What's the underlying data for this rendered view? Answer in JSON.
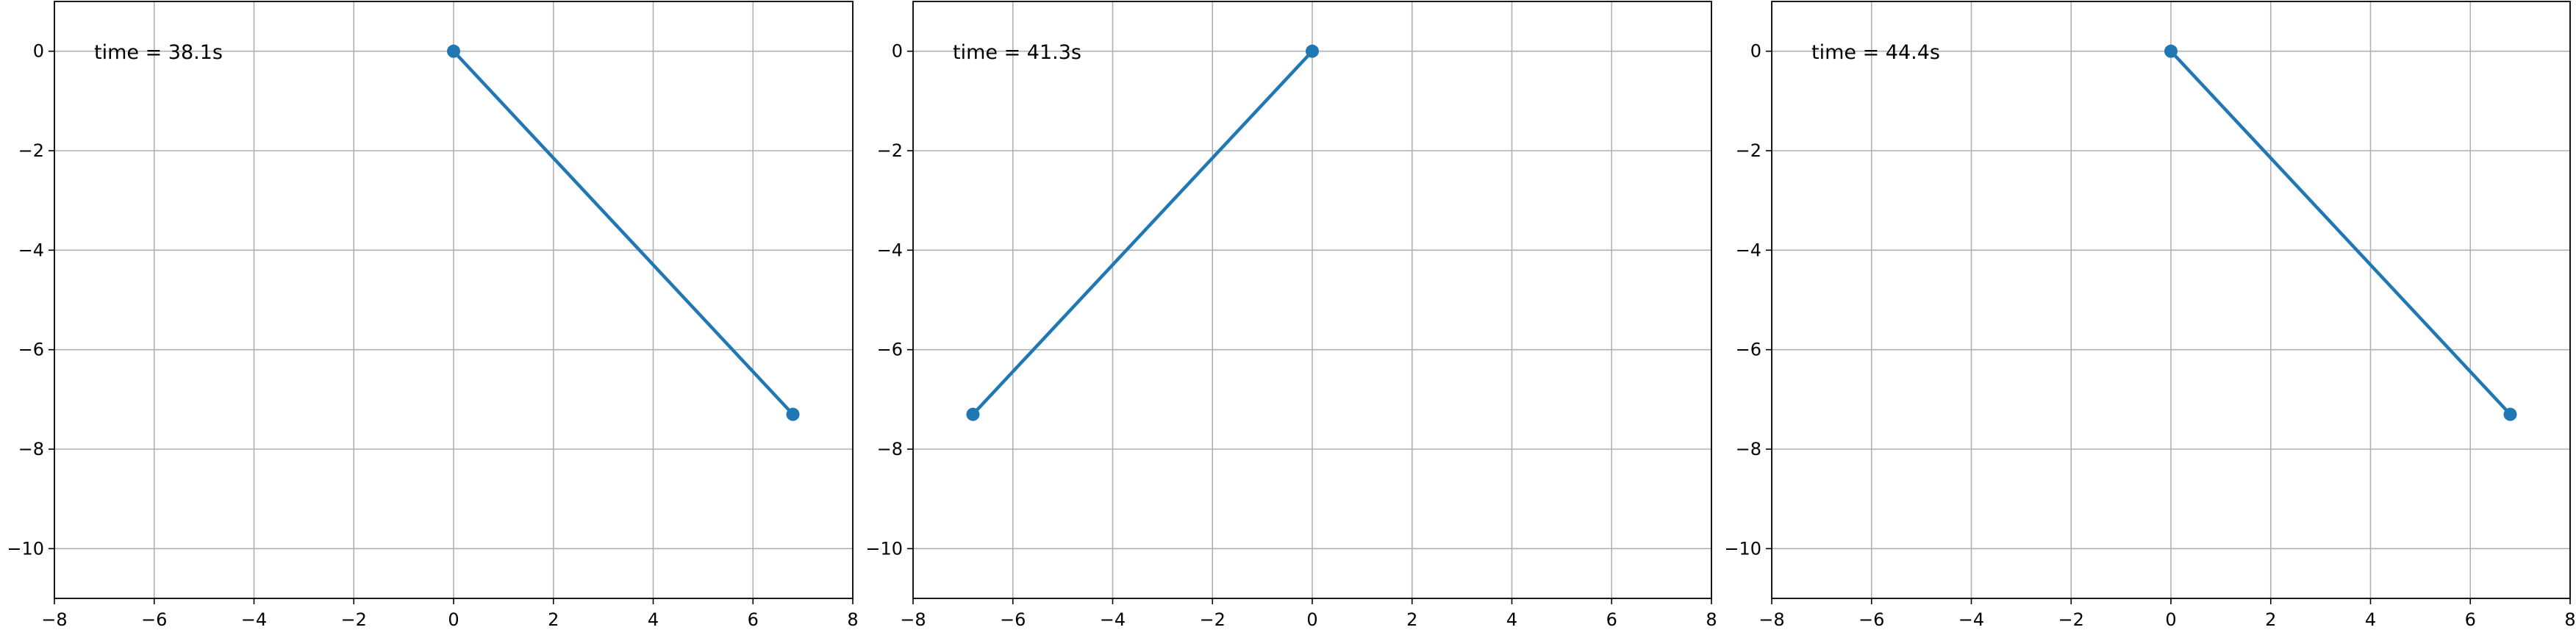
{
  "chart_data": [
    {
      "type": "line",
      "annotation": "time = 38.1s",
      "x": [
        0,
        6.8
      ],
      "y": [
        0,
        -7.3
      ],
      "xlim": [
        -8,
        8
      ],
      "ylim": [
        -11,
        1
      ],
      "xticks": [
        "−8",
        "−6",
        "−4",
        "−2",
        "0",
        "2",
        "4",
        "6",
        "8"
      ],
      "yticks": [
        "0",
        "−2",
        "−4",
        "−6",
        "−8",
        "−10"
      ],
      "grid": true,
      "color": "#1f77b4"
    },
    {
      "type": "line",
      "annotation": "time = 41.3s",
      "x": [
        0,
        -6.8
      ],
      "y": [
        0,
        -7.3
      ],
      "xlim": [
        -8,
        8
      ],
      "ylim": [
        -11,
        1
      ],
      "xticks": [
        "−8",
        "−6",
        "−4",
        "−2",
        "0",
        "2",
        "4",
        "6",
        "8"
      ],
      "yticks": [
        "0",
        "−2",
        "−4",
        "−6",
        "−8",
        "−10"
      ],
      "grid": true,
      "color": "#1f77b4"
    },
    {
      "type": "line",
      "annotation": "time = 44.4s",
      "x": [
        0,
        6.8
      ],
      "y": [
        0,
        -7.3
      ],
      "xlim": [
        -8,
        8
      ],
      "ylim": [
        -11,
        1
      ],
      "xticks": [
        "−8",
        "−6",
        "−4",
        "−2",
        "0",
        "2",
        "4",
        "6",
        "8"
      ],
      "yticks": [
        "0",
        "−2",
        "−4",
        "−6",
        "−8",
        "−10"
      ],
      "grid": true,
      "color": "#1f77b4"
    }
  ]
}
